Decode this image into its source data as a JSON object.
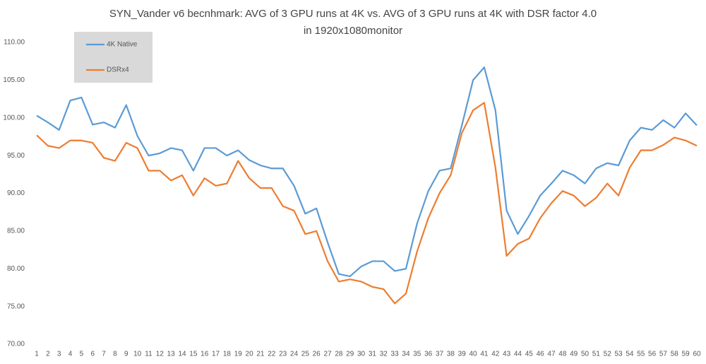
{
  "chart_data": {
    "type": "line",
    "title": "SYN_Vander v6 becnhmark: AVG of 3 GPU runs at 4K vs. AVG of 3 GPU runs at 4K with DSR factor 4.0 in 1920x1080monitor",
    "categories": [
      "1",
      "2",
      "3",
      "4",
      "5",
      "6",
      "7",
      "8",
      "9",
      "10",
      "11",
      "12",
      "13",
      "14",
      "15",
      "16",
      "17",
      "18",
      "19",
      "20",
      "21",
      "22",
      "23",
      "24",
      "25",
      "26",
      "27",
      "28",
      "29",
      "30",
      "31",
      "32",
      "33",
      "34",
      "35",
      "36",
      "37",
      "38",
      "39",
      "40",
      "41",
      "42",
      "43",
      "44",
      "45",
      "46",
      "47",
      "48",
      "49",
      "50",
      "51",
      "52",
      "53",
      "54",
      "55",
      "56",
      "57",
      "58",
      "59",
      "60"
    ],
    "series": [
      {
        "name": "4K Native",
        "color": "#5b9bd5",
        "values": [
          100.3,
          99.4,
          98.4,
          102.3,
          102.7,
          99.1,
          99.4,
          98.7,
          101.7,
          97.6,
          95.0,
          95.3,
          96.0,
          95.7,
          93.0,
          96.0,
          96.0,
          95.0,
          95.7,
          94.4,
          93.7,
          93.3,
          93.3,
          91.0,
          87.3,
          88.0,
          83.5,
          79.3,
          79.0,
          80.3,
          81.0,
          81.0,
          79.7,
          80.0,
          86.0,
          90.3,
          93.0,
          93.3,
          99.0,
          105.0,
          106.7,
          101.0,
          87.7,
          84.6,
          87.0,
          89.7,
          91.3,
          93.0,
          92.4,
          91.3,
          93.3,
          94.0,
          93.7,
          97.0,
          98.7,
          98.4,
          99.7,
          98.7,
          100.6,
          99.0
        ]
      },
      {
        "name": "DSRx4",
        "color": "#ed7d31",
        "values": [
          97.7,
          96.3,
          96.0,
          97.0,
          97.0,
          96.7,
          94.7,
          94.3,
          96.7,
          96.0,
          93.0,
          93.0,
          91.7,
          92.4,
          89.7,
          92.0,
          91.0,
          91.3,
          94.3,
          92.0,
          90.7,
          90.7,
          88.3,
          87.7,
          84.6,
          85.0,
          81.0,
          78.3,
          78.6,
          78.3,
          77.6,
          77.3,
          75.4,
          76.7,
          82.3,
          86.7,
          90.0,
          92.4,
          98.0,
          101.0,
          102.0,
          93.4,
          81.7,
          83.3,
          84.0,
          86.7,
          88.7,
          90.3,
          89.7,
          88.3,
          89.4,
          91.3,
          89.7,
          93.4,
          95.7,
          95.7,
          96.4,
          97.4,
          97.0,
          96.3
        ]
      }
    ],
    "ylim": [
      70,
      110
    ],
    "yticks": [
      {
        "value": 70,
        "label": "70.00"
      },
      {
        "value": 75,
        "label": "75.00"
      },
      {
        "value": 80,
        "label": "80.00"
      },
      {
        "value": 85,
        "label": "85.00"
      },
      {
        "value": 90,
        "label": "90.00"
      },
      {
        "value": 95,
        "label": "95.00"
      },
      {
        "value": 100,
        "label": "100.00"
      },
      {
        "value": 105,
        "label": "105.00"
      },
      {
        "value": 110,
        "label": "110.00"
      }
    ],
    "grid": false,
    "legend": "top-left"
  }
}
